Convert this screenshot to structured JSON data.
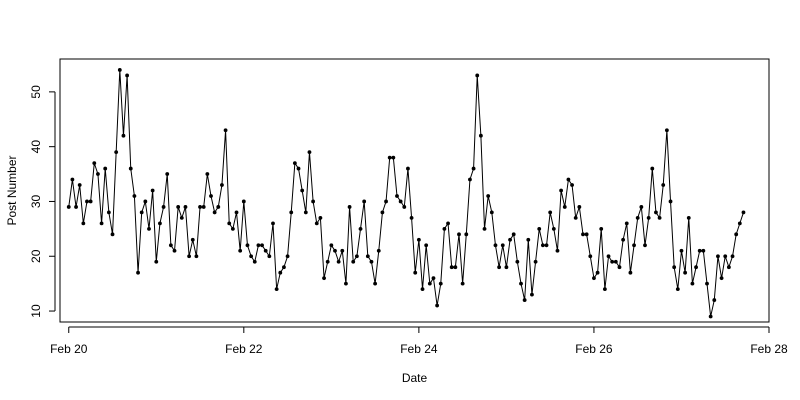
{
  "chart_data": {
    "type": "line",
    "xlabel": "Date",
    "ylabel": "Post Number",
    "x_ticks": [
      {
        "label": "Feb 20",
        "day": 20
      },
      {
        "label": "Feb 22",
        "day": 22
      },
      {
        "label": "Feb 24",
        "day": 24
      },
      {
        "label": "Feb 26",
        "day": 26
      },
      {
        "label": "Feb 28",
        "day": 28
      }
    ],
    "y_ticks": [
      10,
      20,
      30,
      40,
      50
    ],
    "xlim": [
      19.9,
      28.0
    ],
    "ylim": [
      8.0,
      56.0
    ],
    "grid": false,
    "legend": "none",
    "marker": "filled-circle",
    "color": "#000000",
    "x_unit": "day of February",
    "points_per_day": 24,
    "series": [
      {
        "values": [
          29,
          34,
          29,
          33,
          26,
          30,
          30,
          37,
          35,
          26,
          36,
          28,
          24,
          39,
          54,
          42,
          53,
          36,
          31,
          17,
          28,
          30,
          25,
          32,
          19,
          26,
          29,
          35,
          22,
          21,
          29,
          27,
          29,
          20,
          23,
          20,
          29,
          29,
          35,
          31,
          28,
          29,
          33,
          43,
          26,
          25,
          28,
          21,
          30,
          22,
          20,
          19,
          22,
          22,
          21,
          20,
          26,
          14,
          17,
          18,
          20,
          28,
          37,
          36,
          32,
          28,
          39,
          30,
          26,
          27,
          16,
          19,
          22,
          21,
          19,
          21,
          15,
          29,
          19,
          20,
          25,
          30,
          20,
          19,
          15,
          21,
          28,
          30,
          38,
          38,
          31,
          30,
          29,
          36,
          27,
          17,
          23,
          14,
          22,
          15,
          16,
          11,
          15,
          25,
          26,
          18,
          18,
          24,
          15,
          24,
          34,
          36,
          53,
          42,
          25,
          31,
          28,
          22,
          18,
          22,
          18,
          23,
          24,
          19,
          15,
          12,
          23,
          13,
          19,
          25,
          22,
          22,
          28,
          25,
          21,
          32,
          29,
          34,
          33,
          27,
          29,
          24,
          24,
          20,
          16,
          17,
          25,
          14,
          20,
          19,
          19,
          18,
          23,
          26,
          17,
          22,
          27,
          29,
          22,
          27,
          36,
          28,
          27,
          33,
          43,
          30,
          18,
          14,
          21,
          17,
          27,
          15,
          18,
          21,
          21,
          15,
          9,
          12,
          20,
          16,
          20,
          18,
          20,
          24,
          26,
          28
        ]
      }
    ]
  }
}
